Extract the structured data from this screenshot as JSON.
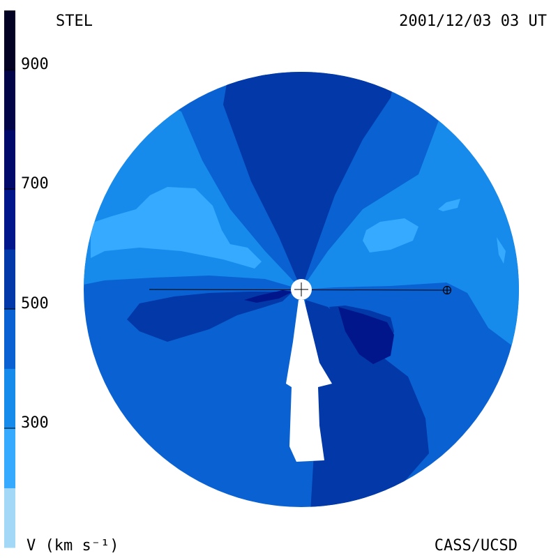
{
  "header": {
    "left_label": "STEL",
    "right_label": "2001/12/03 03 UT"
  },
  "footer": {
    "left_label": "V (km s⁻¹)",
    "right_label": "CASS/UCSD"
  },
  "colorbar": {
    "ticks": [
      {
        "value": 900,
        "label": "900"
      },
      {
        "value": 700,
        "label": "700"
      },
      {
        "value": 500,
        "label": "500"
      },
      {
        "value": 300,
        "label": "300"
      }
    ],
    "levels": [
      {
        "min": 100,
        "max": 200,
        "color": "#a3d8f7"
      },
      {
        "min": 200,
        "max": 300,
        "color": "#35aaff"
      },
      {
        "min": 300,
        "max": 400,
        "color": "#168bec"
      },
      {
        "min": 400,
        "max": 500,
        "color": "#0a62d2"
      },
      {
        "min": 500,
        "max": 600,
        "color": "#0238a7"
      },
      {
        "min": 600,
        "max": 700,
        "color": "#00168a"
      },
      {
        "min": 700,
        "max": 800,
        "color": "#01096a"
      },
      {
        "min": 800,
        "max": 900,
        "color": "#020548"
      },
      {
        "min": 900,
        "max": 1000,
        "color": "#030224"
      }
    ]
  },
  "chart_data": {
    "type": "heatmap",
    "title": "STEL",
    "timestamp": "2001/12/03 03 UT",
    "colorbar_label": "V (km s⁻¹)",
    "colorbar_range": [
      100,
      1000
    ],
    "credit": "CASS/UCSD",
    "regions": [
      {
        "name": "background",
        "level": 400
      },
      {
        "name": "north-cone",
        "level": 500
      },
      {
        "name": "upper-left-band",
        "level": 300
      },
      {
        "name": "upper-left-pocket",
        "level": 200
      },
      {
        "name": "upper-right-band",
        "level": 300
      },
      {
        "name": "right-pocket",
        "level": 200
      },
      {
        "name": "left-fast-lobe",
        "level": 500
      },
      {
        "name": "right-fast-lobe",
        "level": 500
      },
      {
        "name": "right-core",
        "level": 600
      },
      {
        "name": "lower-fast-stream",
        "level": 500
      }
    ]
  }
}
